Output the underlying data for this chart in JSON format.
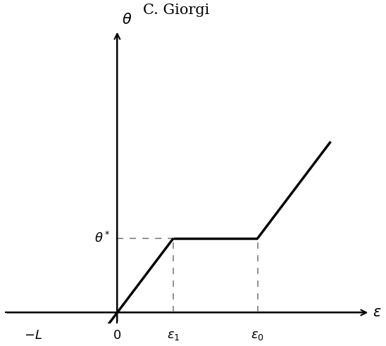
{
  "title": "C. Giorgi",
  "title_fontsize": 15,
  "bg_color": "#ffffff",
  "line_color": "#000000",
  "line_width": 2.5,
  "dashed_color": "#888888",
  "dashed_lw": 1.3,
  "neg_L": -1.5,
  "eps1": 1.0,
  "eps0": 2.5,
  "theta_star": 1.0,
  "slope": 1.0,
  "x_end": 3.8,
  "x_axis_min": -2.0,
  "x_axis_max": 4.5,
  "y_axis_min": -0.15,
  "y_axis_max": 3.8,
  "label_fontsize": 13,
  "tick_label_fontsize": 13
}
